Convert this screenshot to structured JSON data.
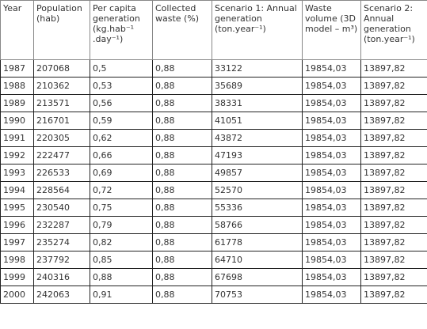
{
  "table": {
    "headers": [
      "Year",
      "Population (hab)",
      "Per capita generation (kg.hab⁻¹ .day⁻¹)",
      "Collected waste (%)",
      "Scenario 1: Annual generation (ton.year⁻¹)",
      "Waste volume (3D model – m³)",
      "Scenario 2: Annual generation (ton.year⁻¹)"
    ],
    "rows": [
      [
        "1987",
        "207068",
        "0,5",
        "0,88",
        "33122",
        "19854,03",
        "13897,82"
      ],
      [
        "1988",
        "210362",
        "0,53",
        "0,88",
        "35689",
        "19854,03",
        "13897,82"
      ],
      [
        "1989",
        "213571",
        "0,56",
        "0,88",
        "38331",
        "19854,03",
        "13897,82"
      ],
      [
        "1990",
        "216701",
        "0,59",
        "0,88",
        "41051",
        "19854,03",
        "13897,82"
      ],
      [
        "1991",
        "220305",
        "0,62",
        "0,88",
        "43872",
        "19854,03",
        "13897,82"
      ],
      [
        "1992",
        "222477",
        "0,66",
        "0,88",
        "47193",
        "19854,03",
        "13897,82"
      ],
      [
        "1993",
        "226533",
        "0,69",
        "0,88",
        "49857",
        "19854,03",
        "13897,82"
      ],
      [
        "1994",
        "228564",
        "0,72",
        "0,88",
        "52570",
        "19854,03",
        "13897,82"
      ],
      [
        "1995",
        "230540",
        "0,75",
        "0,88",
        "55336",
        "19854,03",
        "13897,82"
      ],
      [
        "1996",
        "232287",
        "0,79",
        "0,88",
        "58766",
        "19854,03",
        "13897,82"
      ],
      [
        "1997",
        "235274",
        "0,82",
        "0,88",
        "61778",
        "19854,03",
        "13897,82"
      ],
      [
        "1998",
        "237792",
        "0,85",
        "0,88",
        "64710",
        "19854,03",
        "13897,82"
      ],
      [
        "1999",
        "240316",
        "0,88",
        "0,88",
        "67698",
        "19854,03",
        "13897,82"
      ],
      [
        "2000",
        "242063",
        "0,91",
        "0,88",
        "70753",
        "19854,03",
        "13897,82"
      ]
    ]
  }
}
